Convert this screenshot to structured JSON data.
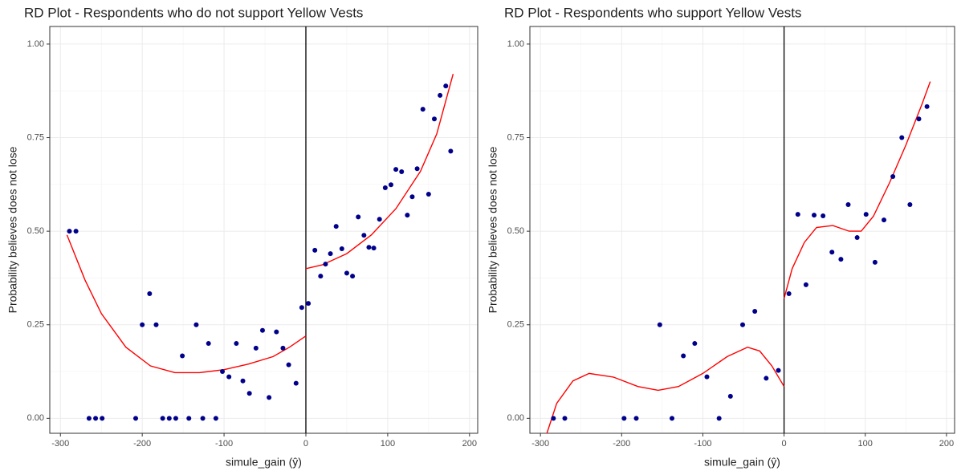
{
  "chart_data": [
    {
      "type": "scatter",
      "title": "RD Plot - Respondents who do not support Yellow Vests",
      "xlabel": "simule_gain (ŷ)",
      "ylabel": "Probability believes does not lose",
      "color": "#00008b",
      "x": [
        -289,
        -281,
        -265,
        -257,
        -249,
        -208,
        -200,
        -191,
        -183,
        -175,
        -167,
        -159,
        -151,
        -143,
        -134,
        -126,
        -119,
        -110,
        -102,
        -94,
        -85,
        -77,
        -69,
        -61,
        -53,
        -45,
        -36,
        -28,
        -21,
        -12,
        -5,
        3,
        11,
        18,
        24,
        30,
        37,
        44,
        50,
        57,
        64,
        71,
        77,
        83,
        90,
        97,
        104,
        110,
        117,
        124,
        130,
        136,
        143,
        150,
        157,
        164,
        171,
        177
      ],
      "values": [
        0.5,
        0.5,
        0,
        0,
        0,
        0,
        0.25,
        0.333,
        0.25,
        0,
        0,
        0,
        0.167,
        0,
        0.25,
        0,
        0.2,
        0,
        0.125,
        0.111,
        0.2,
        0.1,
        0.0667,
        0.1875,
        0.235,
        0.0556,
        0.231,
        0.1875,
        0.143,
        0.0938,
        0.296,
        0.307,
        0.449,
        0.38,
        0.412,
        0.44,
        0.513,
        0.453,
        0.388,
        0.38,
        0.538,
        0.489,
        0.457,
        0.455,
        0.532,
        0.616,
        0.624,
        0.665,
        0.659,
        0.543,
        0.592,
        0.667,
        0.826,
        0.599,
        0.8,
        0.863,
        0.888,
        0.714
      ],
      "fit": [
        {
          "color": "#ff0000",
          "x": [
            -292,
            -270,
            -250,
            -220,
            -190,
            -160,
            -130,
            -100,
            -70,
            -40,
            -20,
            0
          ],
          "values": [
            0.49,
            0.37,
            0.28,
            0.19,
            0.14,
            0.122,
            0.122,
            0.13,
            0.145,
            0.165,
            0.19,
            0.22
          ]
        },
        {
          "color": "#ff0000",
          "x": [
            0,
            20,
            50,
            80,
            110,
            140,
            160,
            180
          ],
          "values": [
            0.4,
            0.41,
            0.44,
            0.49,
            0.56,
            0.66,
            0.76,
            0.92
          ]
        }
      ],
      "vline": 0,
      "xlim": [
        -313,
        210
      ],
      "ylim": [
        -0.04,
        1.047
      ],
      "xticks": [
        -300,
        -200,
        -100,
        0,
        100,
        200
      ],
      "yticks": [
        {
          "value": 0,
          "label": "0.00"
        },
        {
          "value": 0.25,
          "label": "0.25"
        },
        {
          "value": 0.5,
          "label": "0.50"
        },
        {
          "value": 0.75,
          "label": "0.75"
        },
        {
          "value": 1,
          "label": "1.00"
        }
      ],
      "grid": true
    },
    {
      "type": "scatter",
      "title": "RD Plot - Respondents who support Yellow Vests",
      "xlabel": "simule_gain (ŷ)",
      "ylabel": "Probability believes does not lose",
      "color": "#00008b",
      "x": [
        -284,
        -270,
        -197,
        -182,
        -153,
        -138,
        -124,
        -110,
        -95,
        -80,
        -66,
        -51,
        -36,
        -22,
        -7,
        6,
        17,
        27,
        37,
        48,
        59,
        70,
        79,
        90,
        101,
        112,
        123,
        134,
        145,
        155,
        166,
        176
      ],
      "values": [
        0,
        0,
        0,
        0,
        0.25,
        0,
        0.167,
        0.2,
        0.111,
        0,
        0.0588,
        0.25,
        0.286,
        0.107,
        0.128,
        0.333,
        0.545,
        0.357,
        0.543,
        0.541,
        0.444,
        0.425,
        0.571,
        0.483,
        0.545,
        0.417,
        0.53,
        0.646,
        0.75,
        0.571,
        0.8,
        0.833
      ],
      "fit": [
        {
          "color": "#ff0000",
          "x": [
            -292,
            -280,
            -260,
            -240,
            -210,
            -180,
            -155,
            -130,
            -100,
            -70,
            -45,
            -30,
            -15,
            0
          ],
          "values": [
            -0.04,
            0.04,
            0.1,
            0.12,
            0.11,
            0.085,
            0.075,
            0.085,
            0.12,
            0.165,
            0.19,
            0.18,
            0.14,
            0.085
          ]
        },
        {
          "color": "#ff0000",
          "x": [
            0,
            10,
            25,
            40,
            60,
            80,
            95,
            110,
            130,
            150,
            170,
            180
          ],
          "values": [
            0.32,
            0.4,
            0.47,
            0.51,
            0.515,
            0.5,
            0.5,
            0.54,
            0.63,
            0.73,
            0.84,
            0.9
          ]
        }
      ],
      "vline": 0,
      "xlim": [
        -313,
        210
      ],
      "ylim": [
        -0.04,
        1.047
      ],
      "xticks": [
        -300,
        -200,
        -100,
        0,
        100,
        200
      ],
      "yticks": [
        {
          "value": 0,
          "label": "0.00"
        },
        {
          "value": 0.25,
          "label": "0.25"
        },
        {
          "value": 0.5,
          "label": "0.50"
        },
        {
          "value": 0.75,
          "label": "0.75"
        },
        {
          "value": 1,
          "label": "1.00"
        }
      ],
      "grid": true
    }
  ]
}
